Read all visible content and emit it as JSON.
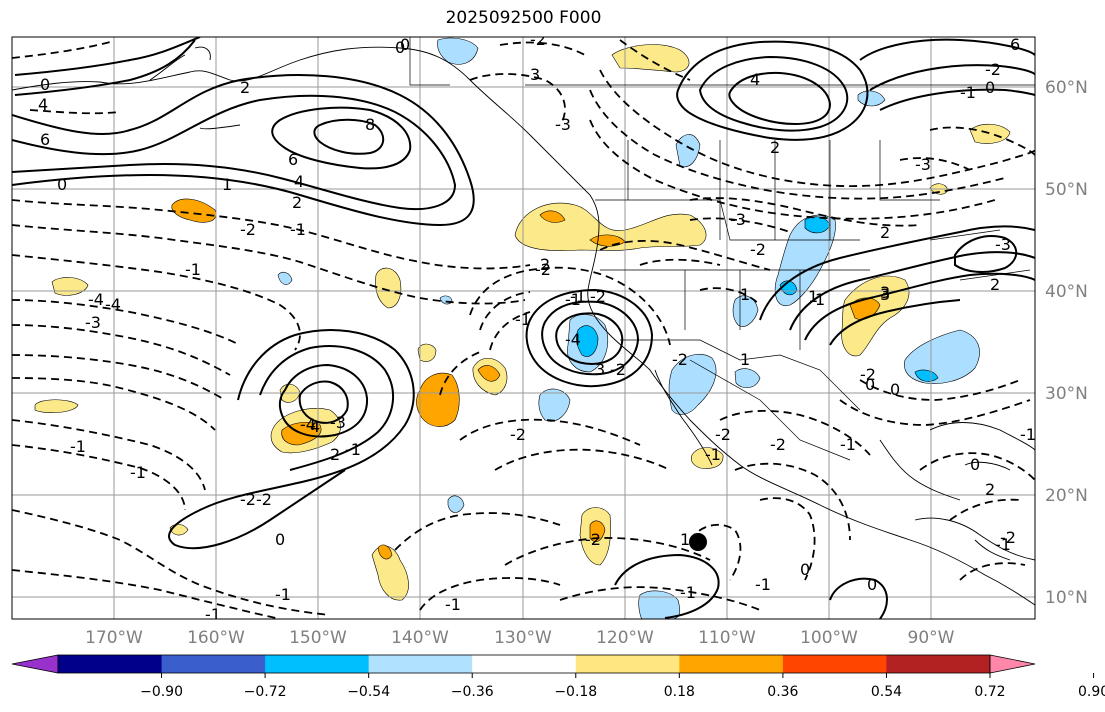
{
  "title": "2025092500 F000",
  "map": {
    "lat_labels": [
      "60°N",
      "50°N",
      "40°N",
      "30°N",
      "20°N",
      "10°N"
    ],
    "lon_labels": [
      "170°W",
      "160°W",
      "150°W",
      "140°W",
      "130°W",
      "120°W",
      "110°W",
      "100°W",
      "90°W"
    ],
    "contour_labels": [
      "0",
      "2",
      "4",
      "3",
      "0",
      "-2",
      "-3",
      "-4",
      "-2",
      "0",
      "-1",
      "2",
      "3",
      "-3",
      "-4",
      "-1",
      "6",
      "6",
      "8",
      "4",
      "6",
      "4",
      "2",
      "1",
      "0",
      "-1",
      "-2",
      "-2",
      "-2",
      "-3",
      "-2",
      "2",
      "-3",
      "-1",
      "-1",
      "-2",
      "-2",
      "-4",
      "-3",
      "-2",
      "-2",
      "2",
      "-1",
      "1",
      "-1",
      "-4",
      "-1",
      "4",
      "3",
      "2",
      "1",
      "-2",
      "-1",
      "-1",
      "-2",
      "0",
      "-2",
      "0",
      "-1",
      "-2",
      "1",
      "3",
      "-3",
      "0",
      "-1",
      "2",
      "2",
      "-2",
      "-1",
      "0",
      "1",
      "-1",
      "-2",
      "2",
      "1",
      "0",
      "-1",
      "0",
      "-1",
      "0",
      "-1",
      "-1"
    ],
    "marker": "black-dot",
    "shading_colors": {
      "positive_light": "#fce98a",
      "positive_mid": "#ffa500",
      "negative_light": "#abdeff",
      "negative_mid": "#00bfff"
    }
  },
  "colorbar": {
    "ticks": [
      "−0.90",
      "−0.72",
      "−0.54",
      "−0.36",
      "−0.18",
      "0.18",
      "0.36",
      "0.54",
      "0.72",
      "0.90"
    ],
    "colors": [
      "#9932cc",
      "#00008b",
      "#3a5fcd",
      "#00bfff",
      "#b0e2ff",
      "#ffffff",
      "#ffe680",
      "#ffa500",
      "#ff4500",
      "#b22222",
      "#ff88aa"
    ]
  }
}
